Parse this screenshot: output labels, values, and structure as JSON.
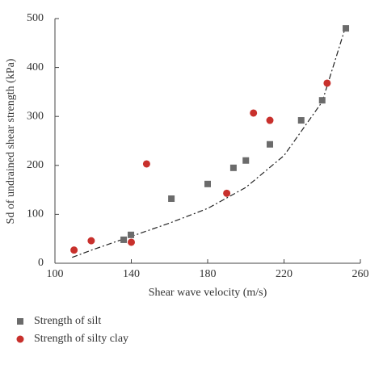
{
  "chart_data": {
    "type": "scatter",
    "x_label": "Shear wave velocity (m/s)",
    "y_label": "Sd of undrained shear strength (kPa)",
    "xlim": [
      100,
      260
    ],
    "xticks": [
      100,
      140,
      180,
      220,
      260
    ],
    "ylim": [
      0,
      500
    ],
    "yticks": [
      0,
      100,
      200,
      300,
      400,
      500
    ],
    "series": [
      {
        "name": "Strength of silt",
        "color": "#6b6b6b",
        "marker": "square",
        "x": [
          136,
          139.8,
          161,
          180,
          193.5,
          200,
          212.6,
          229,
          240,
          252.4
        ],
        "values": [
          48,
          58,
          132,
          162,
          195,
          210,
          243,
          292,
          333,
          480
        ]
      },
      {
        "name": "Strength of silty clay",
        "color": "#c8302c",
        "marker": "circle",
        "x": [
          110,
          119,
          140,
          148,
          190,
          204,
          212.6,
          242.6
        ],
        "values": [
          27,
          46,
          43,
          203,
          143,
          307,
          292,
          368
        ]
      }
    ],
    "trendline": {
      "color": "#222222",
      "x": [
        109,
        120,
        140,
        160,
        180,
        200,
        220,
        240,
        252
      ],
      "y": [
        12,
        28,
        55,
        82,
        112,
        155,
        220,
        330,
        480
      ]
    }
  }
}
